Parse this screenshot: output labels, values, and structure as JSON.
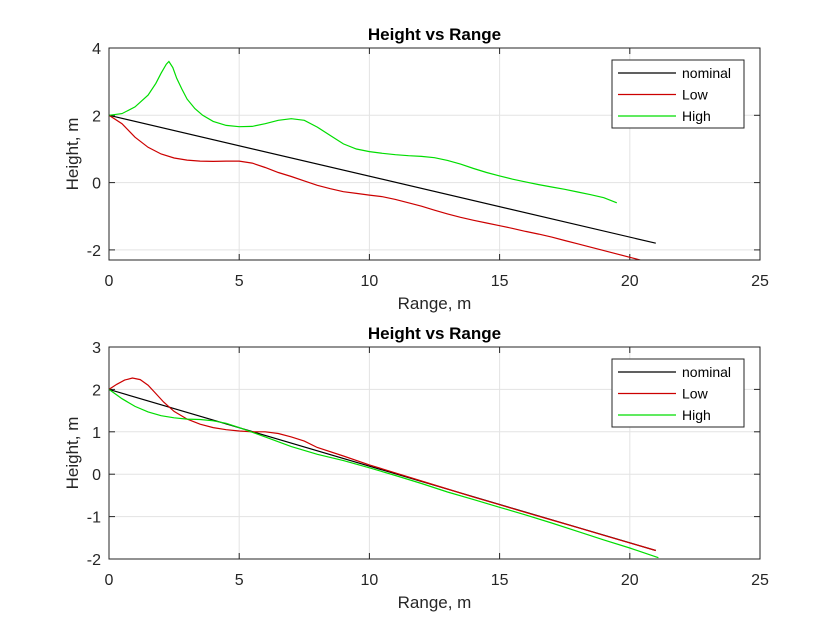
{
  "chart_data": [
    {
      "type": "line",
      "title": "Height vs Range",
      "xlabel": "Range, m",
      "ylabel": "Height, m",
      "xlim": [
        0,
        25
      ],
      "ylim": [
        -2.3,
        4
      ],
      "xticks": [
        0,
        5,
        10,
        15,
        20,
        25
      ],
      "yticks": [
        -2,
        0,
        2,
        4
      ],
      "grid": true,
      "legend": "top-right",
      "series": [
        {
          "name": "nominal",
          "color": "#000000",
          "x": [
            0,
            21
          ],
          "y": [
            2,
            -1.8
          ]
        },
        {
          "name": "Low",
          "color": "#cc0000",
          "x": [
            0,
            0.5,
            1,
            1.5,
            2,
            2.5,
            3,
            3.5,
            4,
            4.5,
            5,
            5.5,
            6,
            6.5,
            7,
            7.5,
            8,
            8.5,
            9,
            9.5,
            10,
            10.5,
            11,
            11.5,
            12,
            12.5,
            13,
            13.5,
            14,
            14.5,
            15,
            15.5,
            16,
            16.5,
            17,
            17.5,
            18,
            18.5,
            19,
            19.5,
            20,
            20.5,
            20.9
          ],
          "y": [
            2,
            1.75,
            1.35,
            1.05,
            0.85,
            0.73,
            0.67,
            0.64,
            0.63,
            0.64,
            0.64,
            0.58,
            0.45,
            0.3,
            0.18,
            0.05,
            -0.08,
            -0.18,
            -0.27,
            -0.32,
            -0.37,
            -0.42,
            -0.5,
            -0.6,
            -0.7,
            -0.82,
            -0.93,
            -1.03,
            -1.12,
            -1.2,
            -1.28,
            -1.36,
            -1.45,
            -1.53,
            -1.62,
            -1.72,
            -1.82,
            -1.92,
            -2.02,
            -2.12,
            -2.22,
            -2.32,
            -2.38
          ]
        },
        {
          "name": "High",
          "color": "#00dd00",
          "x": [
            0,
            0.5,
            1,
            1.5,
            1.8,
            2,
            2.2,
            2.3,
            2.45,
            2.6,
            2.8,
            3,
            3.3,
            3.6,
            4,
            4.5,
            5,
            5.5,
            6,
            6.5,
            7,
            7.5,
            8,
            8.5,
            9,
            9.5,
            10,
            10.5,
            11,
            11.5,
            12,
            12.5,
            13,
            13.5,
            14,
            14.5,
            15,
            15.5,
            16,
            16.5,
            17,
            17.5,
            18,
            18.5,
            19,
            19.5
          ],
          "y": [
            2,
            2.05,
            2.25,
            2.6,
            2.95,
            3.25,
            3.52,
            3.6,
            3.42,
            3.1,
            2.78,
            2.48,
            2.2,
            2.0,
            1.82,
            1.7,
            1.66,
            1.67,
            1.75,
            1.85,
            1.9,
            1.85,
            1.65,
            1.4,
            1.15,
            1.0,
            0.92,
            0.87,
            0.83,
            0.8,
            0.78,
            0.74,
            0.66,
            0.55,
            0.42,
            0.3,
            0.2,
            0.1,
            0.02,
            -0.06,
            -0.13,
            -0.2,
            -0.28,
            -0.36,
            -0.45,
            -0.6
          ]
        }
      ]
    },
    {
      "type": "line",
      "title": "Height vs Range",
      "xlabel": "Range, m",
      "ylabel": "Height, m",
      "xlim": [
        0,
        25
      ],
      "ylim": [
        -2,
        3
      ],
      "xticks": [
        0,
        5,
        10,
        15,
        20,
        25
      ],
      "yticks": [
        -2,
        -1,
        0,
        1,
        2,
        3
      ],
      "grid": true,
      "legend": "top-right",
      "series": [
        {
          "name": "nominal",
          "color": "#000000",
          "x": [
            0,
            21
          ],
          "y": [
            2,
            -1.8
          ]
        },
        {
          "name": "Low",
          "color": "#cc0000",
          "x": [
            0,
            0.3,
            0.6,
            0.9,
            1.2,
            1.5,
            1.8,
            2.1,
            2.5,
            3,
            3.5,
            4,
            4.5,
            5,
            5.5,
            6,
            6.5,
            7,
            7.5,
            8,
            9,
            10,
            11,
            12,
            13,
            14,
            15,
            16,
            17,
            18,
            19,
            20,
            21
          ],
          "y": [
            2,
            2.12,
            2.22,
            2.27,
            2.23,
            2.1,
            1.9,
            1.7,
            1.48,
            1.3,
            1.18,
            1.1,
            1.05,
            1.02,
            1.0,
            1.0,
            0.96,
            0.88,
            0.78,
            0.63,
            0.43,
            0.22,
            0.03,
            -0.16,
            -0.35,
            -0.54,
            -0.72,
            -0.9,
            -1.08,
            -1.26,
            -1.44,
            -1.62,
            -1.8
          ]
        },
        {
          "name": "High",
          "color": "#00dd00",
          "x": [
            0,
            0.5,
            1,
            1.5,
            2,
            2.5,
            3,
            3.5,
            4,
            4.5,
            5,
            6,
            7,
            8,
            9,
            10,
            11,
            12,
            13,
            14,
            15,
            16,
            17,
            18,
            19,
            20,
            21.1
          ],
          "y": [
            2,
            1.78,
            1.6,
            1.47,
            1.38,
            1.33,
            1.3,
            1.29,
            1.26,
            1.2,
            1.1,
            0.88,
            0.65,
            0.47,
            0.32,
            0.15,
            -0.03,
            -0.22,
            -0.42,
            -0.6,
            -0.78,
            -0.96,
            -1.15,
            -1.35,
            -1.55,
            -1.74,
            -1.97
          ]
        }
      ]
    }
  ]
}
